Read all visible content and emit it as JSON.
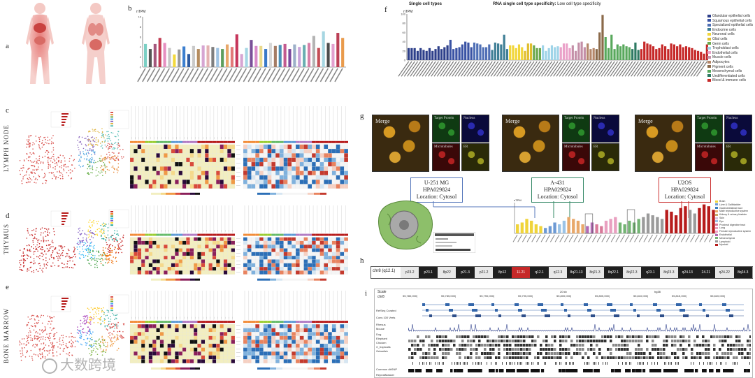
{
  "panel_labels": {
    "a": "a",
    "b": "b",
    "c": "c",
    "d": "d",
    "e": "e",
    "f": "f",
    "g": "g",
    "h": "h",
    "i": "i"
  },
  "side_labels": {
    "lymph": "LYMPH NODE",
    "thymus": "THYMUS",
    "bone": "BONE MARROW"
  },
  "panel_f": {
    "title_left": "Single cell types",
    "title_main": "RNA single cell type specificity:",
    "title_sub": "Low cell type specificity",
    "ylabel": "nTPM"
  },
  "panel_b": {
    "ylabel": "nTPM"
  },
  "panel_g": {
    "tiles": [
      "Merge",
      "Target Protein",
      "Nucleus",
      "Microtubules",
      "ER"
    ],
    "callouts": [
      {
        "line1": "U-251 MG",
        "line2": "HPA029824",
        "line3": "Location: Cytosol",
        "color": "#5577bb"
      },
      {
        "line1": "A-431",
        "line2": "HPA029824",
        "line3": "Location: Cytosol",
        "color": "#338866"
      },
      {
        "line1": "U2OS",
        "line2": "HPA029824",
        "line3": "Location: Cytosol",
        "color": "#cc3333"
      }
    ],
    "legend": [
      "Brain",
      "Liver & Gallbladder",
      "Gastrointestinal tract",
      "Male reproductive system",
      "Kidney & urinary bladder",
      "Skin",
      "Eye",
      "Proximal digestive tract",
      "Lung",
      "Female reproductive system",
      "Endothelial",
      "Mesenchymal",
      "Lymphoid",
      "Myeloid"
    ]
  },
  "panel_h": {
    "chrom": "chr8 (q12.1)",
    "bands": [
      "p23.2",
      "p23.1",
      "8p22",
      "p21.3",
      "p21.2",
      "8p12",
      "11.21",
      "q12.1",
      "q12.3",
      "8q21.13",
      "8q21.3",
      "8q22.1",
      "8q22.3",
      "q23.1",
      "8q23.3",
      "q24.13",
      "24.21",
      "q24.22",
      "8q24.3"
    ]
  },
  "panel_i": {
    "scale": "Scale",
    "chr": "chr8",
    "scale_val": "20 kb",
    "genome": "hg38",
    "positions": [
      "55,780,000|",
      "55,785,000|",
      "55,790,000|",
      "55,795,000|",
      "55,800,000|",
      "55,805,000|",
      "55,810,000|",
      "55,815,000|",
      "55,820,000|"
    ],
    "tracks": [
      "RefSeq Curated",
      "Cons 100 Verts",
      "Rhesus",
      "Mouse",
      "Dog",
      "Elephant",
      "Chicken",
      "X_tropicalis",
      "Zebrafish",
      "Common dbSNP",
      "RepeatMasker"
    ]
  },
  "watermark": "大数跨境",
  "colors": {
    "lymph_palette": [
      "#f2eec0",
      "#f5d98a",
      "#f09a45",
      "#d94a3a",
      "#8a1f5a",
      "#2a0a3a",
      "#111111"
    ],
    "immune_red": "#b71c1c",
    "epithelial_blue": "#2d3f8a"
  },
  "chart_data": [
    {
      "type": "bar",
      "panel": "b",
      "ylabel": "nTPM",
      "ylim": [
        0,
        10
      ],
      "values": [
        4.6,
        3.6,
        4.6,
        5.8,
        4.8,
        3.8,
        2.5,
        3.5,
        4.1,
        2.6,
        4.2,
        3.6,
        4.3,
        4.3,
        4.0,
        3.8,
        3.6,
        4.5,
        4.0,
        6.5,
        2.6,
        3.8,
        5.4,
        4.2,
        4.2,
        3.6,
        4.8,
        4.2,
        4.4,
        4.6,
        3.6,
        4.5,
        4.0,
        4.4,
        4.8,
        6.2,
        3.8,
        7.1,
        4.8,
        4.6,
        6.8,
        5.8
      ],
      "colors": [
        "#7bcfc4",
        "#555555",
        "#a5577c",
        "#c23b53",
        "#e68fc0",
        "#c7c7c7",
        "#f3d93c",
        "#999999",
        "#3c7fcf",
        "#2d5aa0",
        "#c9c9c9",
        "#b58c5f",
        "#d6a5d2",
        "#e4b2b2",
        "#7e7e7e",
        "#a0c4e4",
        "#5d9e5d",
        "#e8a86a",
        "#e27979",
        "#c6365b",
        "#d6a5d2",
        "#a5d6e4",
        "#7a4f98",
        "#d88ac9",
        "#e9d98b",
        "#3a79c8",
        "#d7d7d7",
        "#a47c65",
        "#4b8fb7",
        "#c25a8f",
        "#7b4a9e",
        "#9db0c9",
        "#c8a3da",
        "#6aaeb1",
        "#d67fa8",
        "#b3b3b3",
        "#c44c55",
        "#a6d6e2",
        "#4c4c4c",
        "#e3a0cf",
        "#bb3f56",
        "#e99b4c"
      ]
    },
    {
      "type": "bar",
      "panel": "f",
      "ylabel": "nTPM",
      "ylim": [
        0,
        100
      ],
      "values": [
        26,
        26,
        26,
        20,
        26,
        22,
        20,
        26,
        20,
        24,
        30,
        24,
        28,
        32,
        44,
        24,
        26,
        28,
        34,
        40,
        38,
        28,
        38,
        36,
        34,
        28,
        28,
        34,
        22,
        38,
        36,
        34,
        55,
        24,
        32,
        32,
        26,
        34,
        28,
        20,
        36,
        36,
        32,
        26,
        26,
        32,
        20,
        26,
        32,
        28,
        30,
        28,
        36,
        36,
        26,
        32,
        20,
        38,
        40,
        28,
        36,
        24,
        26,
        24,
        60,
        98,
        50,
        26,
        55,
        24,
        34,
        30,
        34,
        30,
        28,
        24,
        38,
        22,
        24,
        40,
        36,
        34,
        30,
        24,
        26,
        34,
        30,
        24,
        36,
        34,
        30,
        34,
        28,
        30,
        28,
        26,
        22,
        20,
        18,
        14,
        34
      ],
      "groups": [
        {
          "name": "Glandular epithelial cells",
          "color": "#2d3f8a",
          "n": 14
        },
        {
          "name": "Squamous epithelial cells",
          "color": "#3a53a4",
          "n": 8
        },
        {
          "name": "Specialized epithelial cells",
          "color": "#4f6fb5",
          "n": 6
        },
        {
          "name": "Endocrine cells",
          "color": "#3f7f96",
          "n": 6
        },
        {
          "name": "Neuronal cells",
          "color": "#f1d63a",
          "n": 5
        },
        {
          "name": "Glial cells",
          "color": "#e0be2e",
          "n": 3
        },
        {
          "name": "Germ cells",
          "color": "#6aa84f",
          "n": 3
        },
        {
          "name": "Trophoblast cells",
          "color": "#9fd4e8",
          "n": 6
        },
        {
          "name": "Endothelial cells",
          "color": "#eaa2c9",
          "n": 4
        },
        {
          "name": "Muscle cells",
          "color": "#c48fa8",
          "n": 5
        },
        {
          "name": "Adipocytes",
          "color": "#b5876a",
          "n": 3
        },
        {
          "name": "Pigment cells",
          "color": "#8b6a4a",
          "n": 3
        },
        {
          "name": "Mesenchymal cells",
          "color": "#58a85c",
          "n": 9
        },
        {
          "name": "Undifferentiated cells",
          "color": "#2e7a62",
          "n": 3
        },
        {
          "name": "Blood & immune cells",
          "color": "#c62828",
          "n": 23
        }
      ]
    }
  ]
}
